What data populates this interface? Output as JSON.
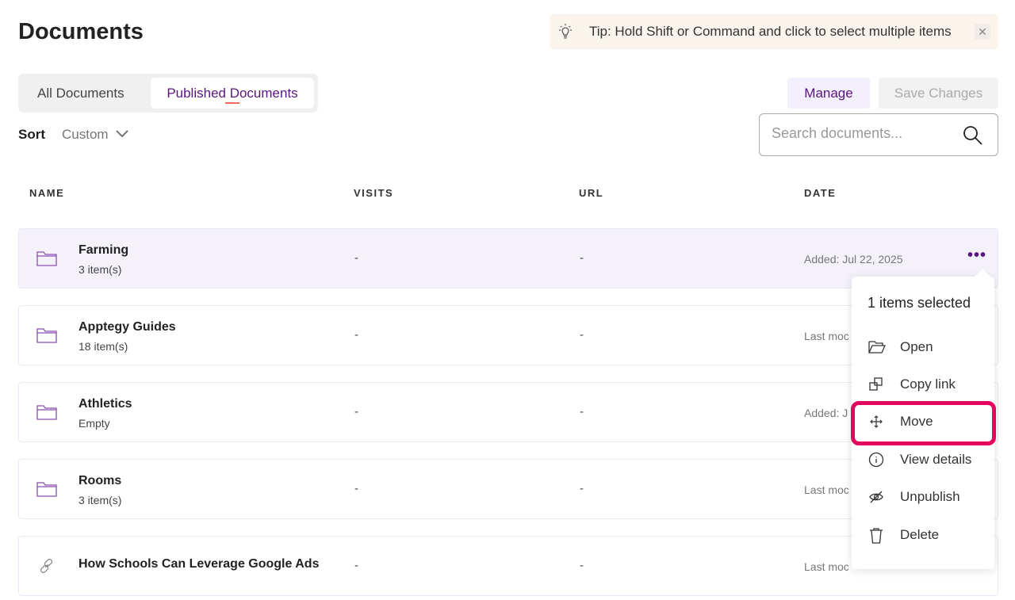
{
  "page": {
    "title": "Documents"
  },
  "tip": {
    "text": "Tip: Hold Shift or Command and click to select multiple items",
    "icon": "lightbulb-icon",
    "close_icon": "close-icon"
  },
  "tabs": [
    {
      "label": "All Documents",
      "active": false
    },
    {
      "label": "Published Documents",
      "active": true
    }
  ],
  "sort": {
    "label": "Sort",
    "value": "Custom"
  },
  "toolbar": {
    "manage_label": "Manage",
    "save_label": "Save Changes"
  },
  "search": {
    "placeholder": "Search documents...",
    "value": ""
  },
  "table": {
    "columns": [
      "NAME",
      "VISITS",
      "URL",
      "DATE"
    ],
    "rows": [
      {
        "name": "Farming",
        "sub": "3 item(s)",
        "visits": "-",
        "url": "-",
        "date": "Added: Jul 22, 2025",
        "type": "folder",
        "selected": true
      },
      {
        "name": "Apptegy Guides",
        "sub": "18 item(s)",
        "visits": "-",
        "url": "-",
        "date": "Last moc",
        "type": "folder"
      },
      {
        "name": "Athletics",
        "sub": "Empty",
        "visits": "-",
        "url": "-",
        "date": "Added: J",
        "type": "folder"
      },
      {
        "name": "Rooms",
        "sub": "3 item(s)",
        "visits": "-",
        "url": "-",
        "date": "Last moc",
        "type": "folder"
      },
      {
        "name": "How Schools Can Leverage Google Ads",
        "sub": "",
        "visits": "-",
        "url": "-",
        "date": "Last moc",
        "type": "link"
      }
    ]
  },
  "context_menu": {
    "header": "1 items selected",
    "items": [
      {
        "label": "Open",
        "icon": "folder-open-icon"
      },
      {
        "label": "Copy link",
        "icon": "copy-icon"
      },
      {
        "label": "Move",
        "icon": "move-icon",
        "highlighted": true
      },
      {
        "label": "View details",
        "icon": "info-icon"
      },
      {
        "label": "Unpublish",
        "icon": "eye-off-icon"
      },
      {
        "label": "Delete",
        "icon": "trash-icon"
      }
    ]
  },
  "colors": {
    "accent": "#5a1580",
    "highlight": "#e2065f",
    "tip_bg": "#fbf4ec",
    "selected_row": "#f4f1fb"
  }
}
